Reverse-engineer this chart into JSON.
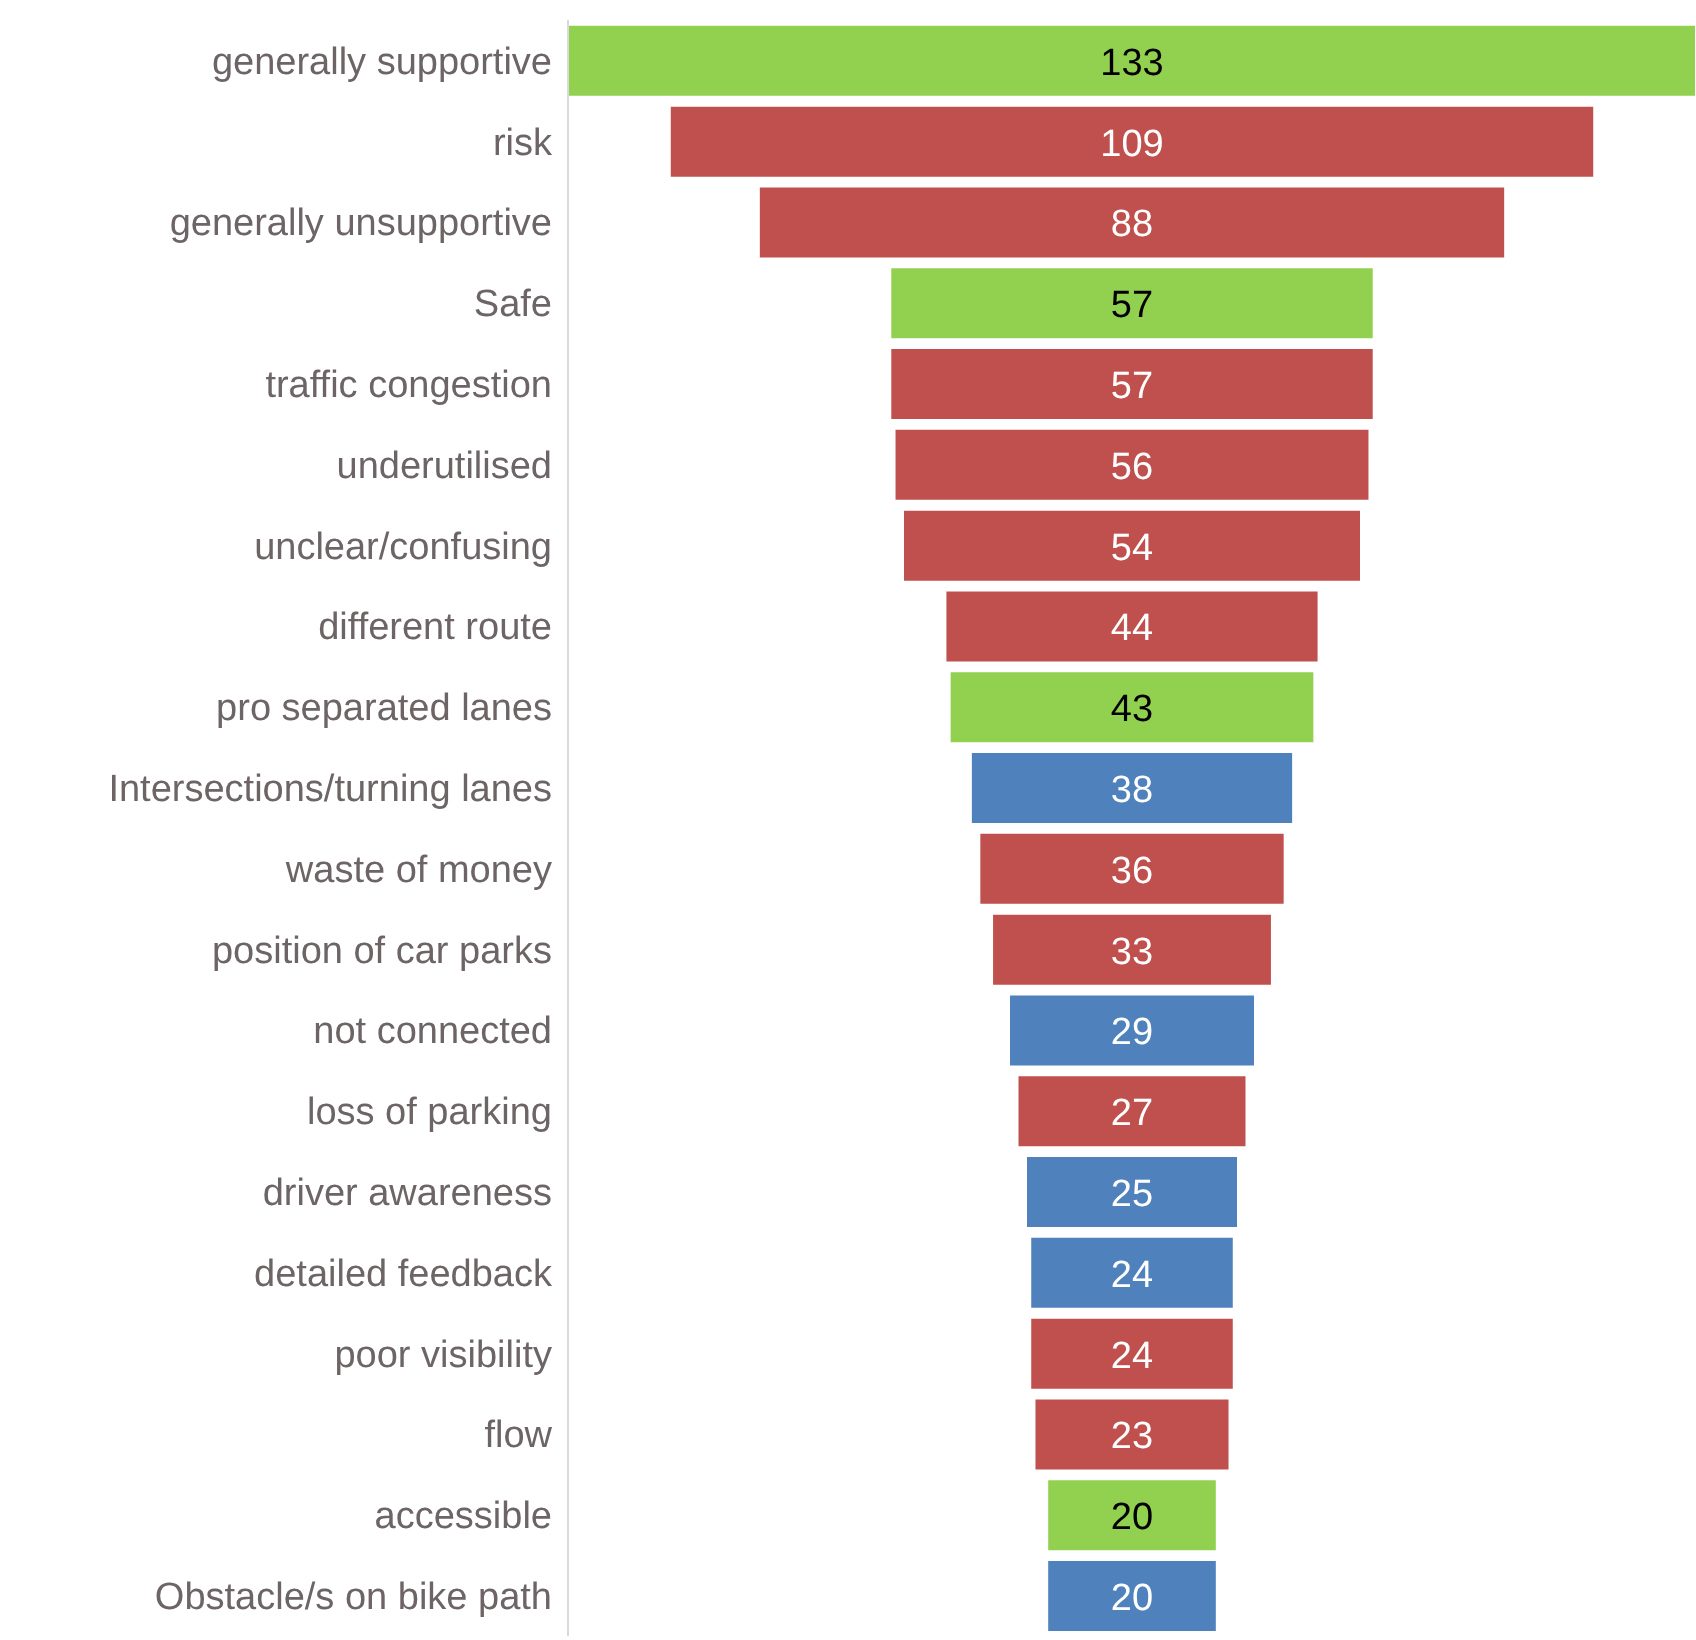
{
  "chart_data": {
    "type": "other",
    "categories": [
      "generally supportive",
      "risk",
      "generally unsupportive",
      "Safe",
      "traffic congestion",
      "underutilised",
      "unclear/confusing",
      "different route",
      "pro separated lanes",
      "Intersections/turning lanes",
      "waste of money",
      "position of car parks",
      "not connected",
      "loss of parking",
      "driver awareness",
      "detailed feedback",
      "poor visibility",
      "flow",
      "accessible",
      "Obstacle/s on bike path"
    ],
    "values": [
      133,
      109,
      88,
      57,
      57,
      56,
      54,
      44,
      43,
      38,
      36,
      33,
      29,
      27,
      25,
      24,
      24,
      23,
      20,
      20
    ],
    "colors": [
      "#92d050",
      "#c0504d",
      "#c0504d",
      "#92d050",
      "#c0504d",
      "#c0504d",
      "#c0504d",
      "#c0504d",
      "#92d050",
      "#4f81bd",
      "#c0504d",
      "#c0504d",
      "#4f81bd",
      "#c0504d",
      "#4f81bd",
      "#4f81bd",
      "#c0504d",
      "#c0504d",
      "#92d050",
      "#4f81bd"
    ],
    "data_labels": true
  }
}
